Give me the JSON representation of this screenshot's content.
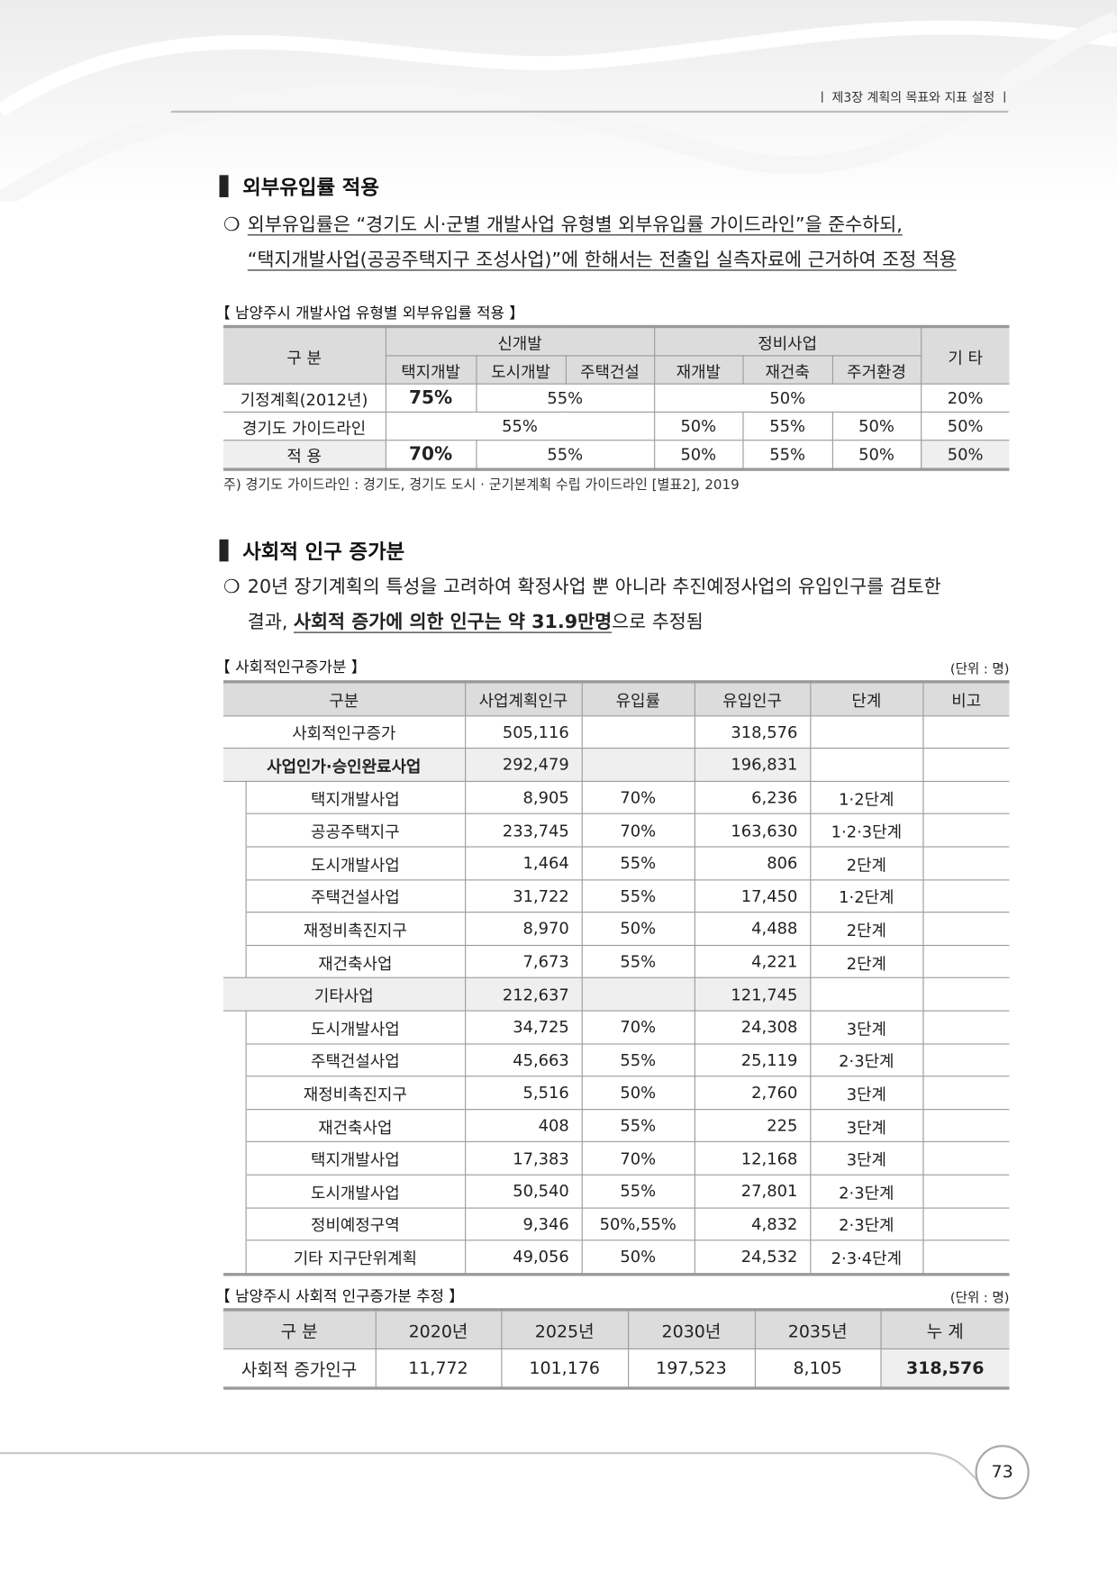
{
  "header": {
    "chapter": "ㅣ  제3장 계획의 목표와 지표 설정  ㅣ"
  },
  "section1": {
    "title": "외부유입률 적용",
    "bullet": "❍",
    "para_line1": "외부유입률은 “경기도 시·군별 개발사업 유형별 외부유입률 가이드라인”을 준수하되,",
    "para_line2": "“택지개발사업(공공주택지구 조성사업)”에 한해서는 전출입 실측자료에 근거하여 조정 적용",
    "table_caption": "【 남양주시 개발사업 유형별 외부유입률 적용 】",
    "table": {
      "h_category": "구 분",
      "h_new": "신개발",
      "h_renew": "정비사업",
      "h_other": "기 타",
      "sub": [
        "택지개발",
        "도시개발",
        "주택건설",
        "재개발",
        "재건축",
        "주거환경"
      ],
      "rows": [
        {
          "label": "기정계획(2012년)",
          "v1": "75%",
          "v2": "55%",
          "v3": "50%",
          "v4": "20%"
        },
        {
          "label": "경기도 가이드라인",
          "v1": "55%",
          "v2": "50%",
          "v3": "55%",
          "v4": "50%",
          "v5": "50%"
        },
        {
          "label": "적 용",
          "v1": "70%",
          "v2": "55%",
          "v3": "50%",
          "v4": "55%",
          "v5": "50%",
          "v6": "50%"
        }
      ]
    },
    "note": "주) 경기도 가이드라인 : 경기도, 경기도 도시 · 군기본계획 수립 가이드라인 [별표2], 2019"
  },
  "section2": {
    "title": "사회적 인구 증가분",
    "bullet": "❍",
    "para_line1": "20년 장기계획의 특성을 고려하여 확정사업 뿐 아니라 추진예정사업의 유입인구를 검토한",
    "para_line2_pre": "결과, ",
    "para_line2_em": "사회적 증가에 의한 인구는 약 31.9만명",
    "para_line2_post": "으로 추정됨",
    "table_caption": "【 사회적인구증가분 】",
    "unit": "(단위 : 명)",
    "headers": [
      "구분",
      "사업계획인구",
      "유입률",
      "유입인구",
      "단계",
      "비고"
    ],
    "total": {
      "name": "사회적인구증가",
      "plan": "505,116",
      "rate": "",
      "inflow": "318,576",
      "stage": ""
    },
    "groups": [
      {
        "name": "사업인가·승인완료사업",
        "plan": "292,479",
        "inflow": "196,831",
        "items": [
          {
            "name": "택지개발사업",
            "plan": "8,905",
            "rate": "70%",
            "inflow": "6,236",
            "stage": "1·2단계"
          },
          {
            "name": "공공주택지구",
            "plan": "233,745",
            "rate": "70%",
            "inflow": "163,630",
            "stage": "1·2·3단계"
          },
          {
            "name": "도시개발사업",
            "plan": "1,464",
            "rate": "55%",
            "inflow": "806",
            "stage": "2단계"
          },
          {
            "name": "주택건설사업",
            "plan": "31,722",
            "rate": "55%",
            "inflow": "17,450",
            "stage": "1·2단계"
          },
          {
            "name": "재정비촉진지구",
            "plan": "8,970",
            "rate": "50%",
            "inflow": "4,488",
            "stage": "2단계"
          },
          {
            "name": "재건축사업",
            "plan": "7,673",
            "rate": "55%",
            "inflow": "4,221",
            "stage": "2단계"
          }
        ]
      },
      {
        "name": "기타사업",
        "plan": "212,637",
        "inflow": "121,745",
        "items": [
          {
            "name": "도시개발사업",
            "plan": "34,725",
            "rate": "70%",
            "inflow": "24,308",
            "stage": "3단계"
          },
          {
            "name": "주택건설사업",
            "plan": "45,663",
            "rate": "55%",
            "inflow": "25,119",
            "stage": "2·3단계"
          },
          {
            "name": "재정비촉진지구",
            "plan": "5,516",
            "rate": "50%",
            "inflow": "2,760",
            "stage": "3단계"
          },
          {
            "name": "재건축사업",
            "plan": "408",
            "rate": "55%",
            "inflow": "225",
            "stage": "3단계"
          },
          {
            "name": "택지개발사업",
            "plan": "17,383",
            "rate": "70%",
            "inflow": "12,168",
            "stage": "3단계"
          },
          {
            "name": "도시개발사업",
            "plan": "50,540",
            "rate": "55%",
            "inflow": "27,801",
            "stage": "2·3단계"
          },
          {
            "name": "정비예정구역",
            "plan": "9,346",
            "rate": "50%,55%",
            "inflow": "4,832",
            "stage": "2·3단계"
          },
          {
            "name": "기타 지구단위계획",
            "plan": "49,056",
            "rate": "50%",
            "inflow": "24,532",
            "stage": "2·3·4단계"
          }
        ]
      }
    ],
    "table2_caption": "【 남양주시 사회적 인구증가분 추정 】",
    "table2_unit": "(단위 : 명)",
    "table2_headers": [
      "구 분",
      "2020년",
      "2025년",
      "2030년",
      "2035년",
      "누 계"
    ],
    "table2_row": [
      "사회적 증가인구",
      "11,772",
      "101,176",
      "197,523",
      "8,105",
      "318,576"
    ]
  },
  "footer": {
    "page": "73"
  }
}
